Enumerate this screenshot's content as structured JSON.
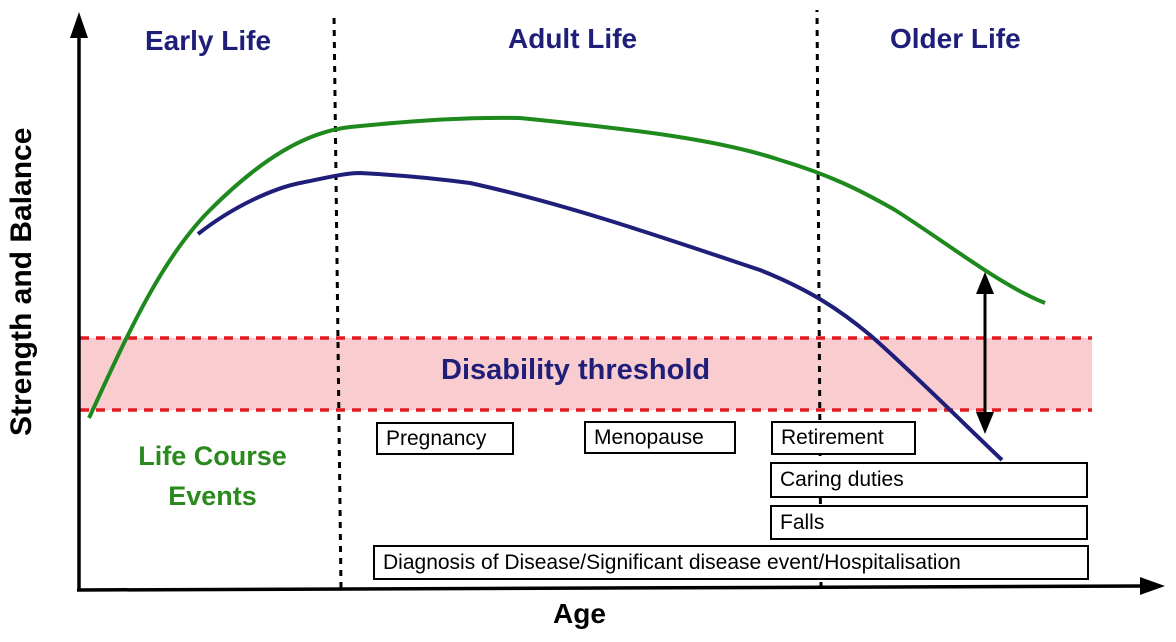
{
  "periods": {
    "early": "Early Life",
    "adult": "Adult Life",
    "older": "Older Life"
  },
  "axes": {
    "y_label": "Strength and Balance",
    "x_label": "Age"
  },
  "threshold_label": "Disability threshold",
  "life_course_events_title": "Life Course Events",
  "events": {
    "pregnancy": "Pregnancy",
    "menopause": "Menopause",
    "retirement": "Retirement",
    "caring_duties": "Caring duties",
    "falls": "Falls",
    "diagnosis": "Diagnosis of Disease/Significant disease event/Hospitalisation"
  },
  "colors": {
    "green_curve": "#1e8a1e",
    "blue_curve": "#1f1f7a",
    "threshold_band": "#f9cdd0",
    "threshold_border": "#e21b23"
  }
}
